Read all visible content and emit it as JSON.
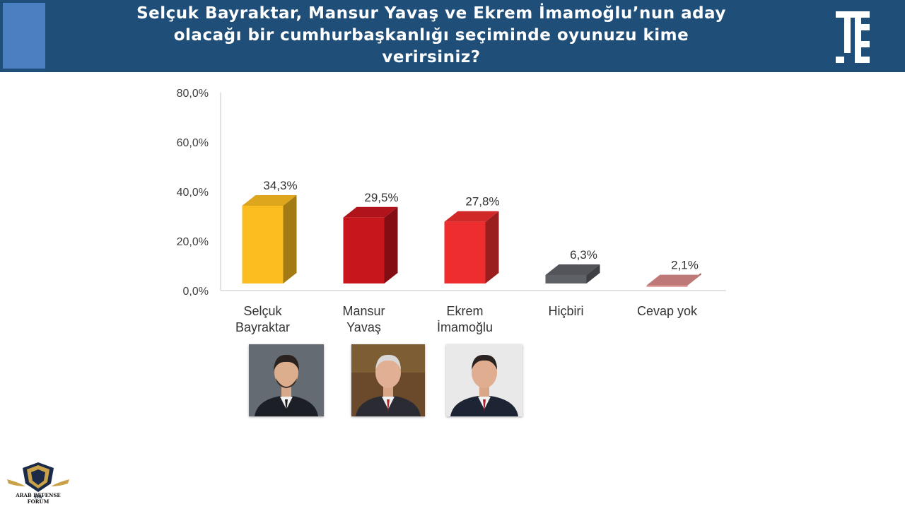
{
  "header": {
    "title_line1": "Selçuk Bayraktar, Mansur Yavaş ve Ekrem İmamoğlu’nun aday",
    "title_line2": "olacağı bir cumhurbaşkanlığı seçiminde oyunuzu kime",
    "title_line3": "verirsiniz?",
    "background_color": "#1f4e79",
    "logo_icon": "te-logo-icon"
  },
  "chart_data": {
    "type": "bar",
    "style": "3d",
    "categories": [
      [
        "Selçuk",
        "Bayraktar"
      ],
      [
        "Mansur",
        "Yavaş"
      ],
      [
        "Ekrem",
        "İmamoğlu"
      ],
      [
        "Hiçbiri"
      ],
      [
        "Cevap yok"
      ]
    ],
    "values": [
      34.3,
      29.5,
      27.8,
      6.3,
      2.1
    ],
    "value_labels": [
      "34,3%",
      "29,5%",
      "27,8%",
      "6,3%",
      "2,1%"
    ],
    "colors": [
      "#fbbd20",
      "#c8161d",
      "#ee2e2e",
      "#5e6166",
      "#d98888"
    ],
    "yticks": [
      "0,0%",
      "20,0%",
      "40,0%",
      "60,0%",
      "80,0%"
    ],
    "ylim": [
      0,
      80
    ],
    "grid": false,
    "legend": "none"
  },
  "candidate_photos": [
    "selcuk-bayraktar-photo",
    "mansur-yavas-photo",
    "ekrem-imamoglu-photo"
  ],
  "watermark": {
    "name": "ARAB DEFENSE FORUM",
    "icon": "arab-defense-forum-logo-icon"
  }
}
